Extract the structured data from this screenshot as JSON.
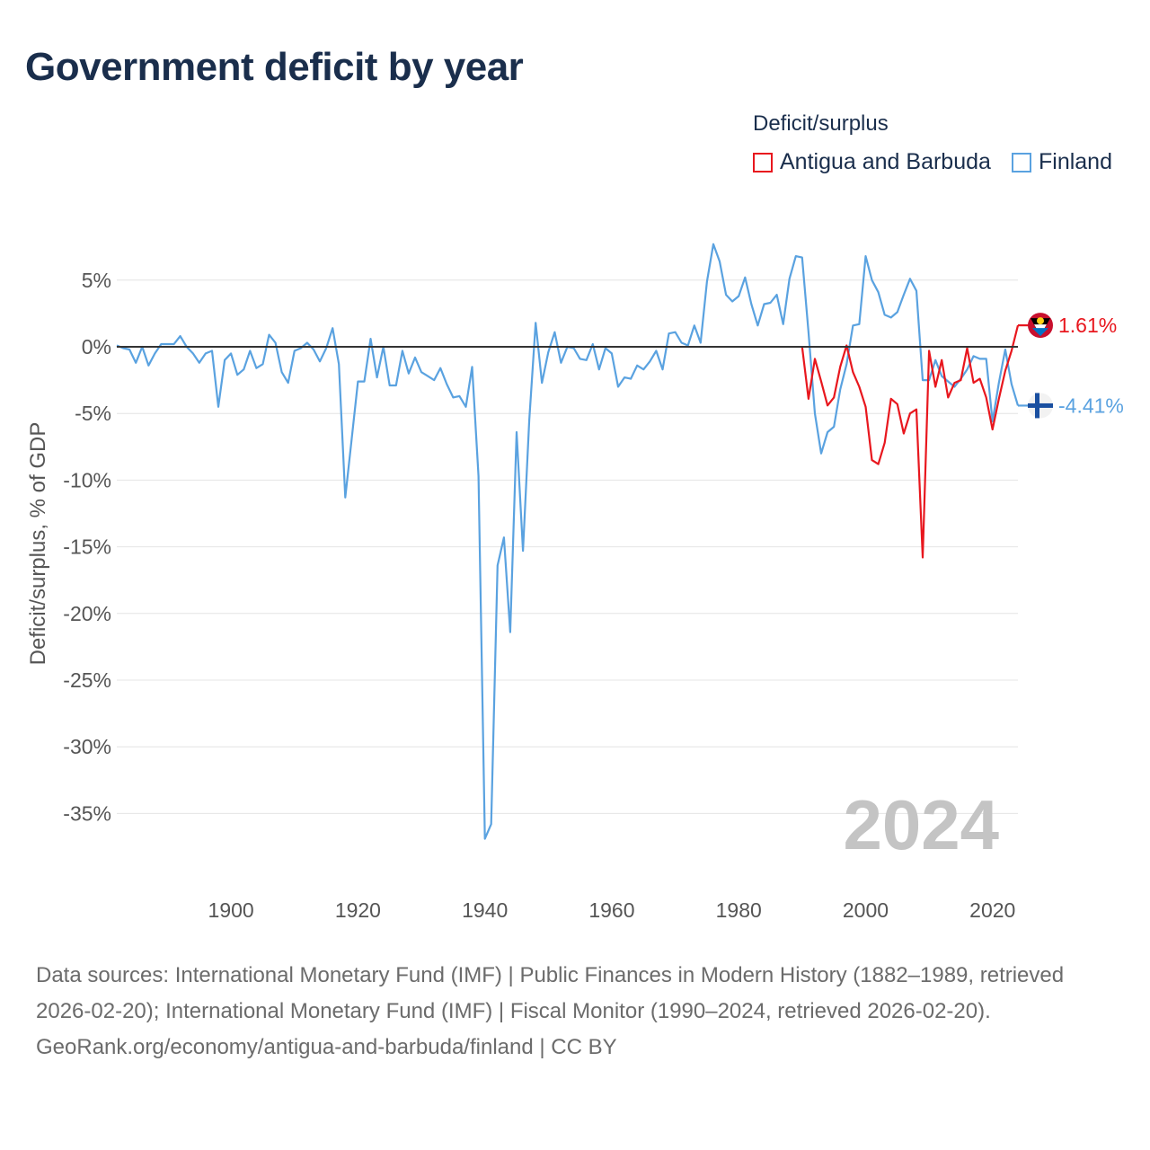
{
  "title": "Government deficit by year",
  "legend": {
    "title": "Deficit/surplus",
    "items": [
      {
        "label": "Antigua and Barbuda",
        "color": "#e8171e"
      },
      {
        "label": "Finland",
        "color": "#5aa2e0"
      }
    ]
  },
  "year_label": "2024",
  "footer": {
    "sources": "Data sources: International Monetary Fund (IMF) | Public Finances in Modern History (1882–1989, retrieved 2026-02-20); International Monetary Fund (IMF) | Fiscal Monitor (1990–2024, retrieved 2026-02-20).",
    "credit": "GeoRank.org/economy/antigua-and-barbuda/finland | CC BY"
  },
  "chart_data": {
    "type": "line",
    "title": "Government deficit by year",
    "xlabel": "",
    "ylabel": "Deficit/surplus, % of GDP",
    "xlim": [
      1882,
      2024
    ],
    "ylim": [
      -37,
      8
    ],
    "x_ticks": [
      1900,
      1920,
      1940,
      1960,
      1980,
      2000,
      2020
    ],
    "y_ticks": [
      5,
      0,
      -5,
      -10,
      -15,
      -20,
      -25,
      -30,
      -35
    ],
    "y_tick_labels": [
      "5%",
      "0%",
      "-5%",
      "-10%",
      "-15%",
      "-20%",
      "-25%",
      "-30%",
      "-35%"
    ],
    "grid": true,
    "series": [
      {
        "name": "Finland",
        "color": "#5aa2e0",
        "end_label": "-4.41%",
        "x": [
          1882,
          1883,
          1884,
          1885,
          1886,
          1887,
          1888,
          1889,
          1890,
          1891,
          1892,
          1893,
          1894,
          1895,
          1896,
          1897,
          1898,
          1899,
          1900,
          1901,
          1902,
          1903,
          1904,
          1905,
          1906,
          1907,
          1908,
          1909,
          1910,
          1911,
          1912,
          1913,
          1914,
          1915,
          1916,
          1917,
          1918,
          1919,
          1920,
          1921,
          1922,
          1923,
          1924,
          1925,
          1926,
          1927,
          1928,
          1929,
          1930,
          1931,
          1932,
          1933,
          1934,
          1935,
          1936,
          1937,
          1938,
          1939,
          1940,
          1941,
          1942,
          1943,
          1944,
          1945,
          1946,
          1947,
          1948,
          1949,
          1950,
          1951,
          1952,
          1953,
          1954,
          1955,
          1956,
          1957,
          1958,
          1959,
          1960,
          1961,
          1962,
          1963,
          1964,
          1965,
          1966,
          1967,
          1968,
          1969,
          1970,
          1971,
          1972,
          1973,
          1974,
          1975,
          1976,
          1977,
          1978,
          1979,
          1980,
          1981,
          1982,
          1983,
          1984,
          1985,
          1986,
          1987,
          1988,
          1989,
          1990,
          1991,
          1992,
          1993,
          1994,
          1995,
          1996,
          1997,
          1998,
          1999,
          2000,
          2001,
          2002,
          2003,
          2004,
          2005,
          2006,
          2007,
          2008,
          2009,
          2010,
          2011,
          2012,
          2013,
          2014,
          2015,
          2016,
          2017,
          2018,
          2019,
          2020,
          2021,
          2022,
          2023,
          2024
        ],
        "values": [
          0.1,
          -0.1,
          -0.2,
          -1.2,
          0.0,
          -1.4,
          -0.5,
          0.2,
          0.2,
          0.2,
          0.8,
          0.0,
          -0.5,
          -1.2,
          -0.5,
          -0.3,
          -4.5,
          -1.0,
          -0.5,
          -2.1,
          -1.7,
          -0.3,
          -1.6,
          -1.3,
          0.9,
          0.3,
          -1.9,
          -2.7,
          -0.3,
          -0.1,
          0.3,
          -0.2,
          -1.1,
          -0.1,
          1.4,
          -1.3,
          -11.3,
          -7.0,
          -2.6,
          -2.6,
          0.6,
          -2.3,
          0.0,
          -2.9,
          -2.9,
          -0.3,
          -2.0,
          -0.8,
          -1.9,
          -2.2,
          -2.5,
          -1.6,
          -2.8,
          -3.8,
          -3.7,
          -4.5,
          -1.5,
          -9.7,
          -36.9,
          -35.8,
          -16.4,
          -14.3,
          -21.4,
          -6.4,
          -15.3,
          -5.5,
          1.8,
          -2.7,
          -0.4,
          1.1,
          -1.2,
          0.0,
          -0.1,
          -0.9,
          -1.0,
          0.2,
          -1.7,
          -0.1,
          -0.5,
          -3.0,
          -2.3,
          -2.4,
          -1.4,
          -1.7,
          -1.1,
          -0.3,
          -1.7,
          1.0,
          1.1,
          0.3,
          0.1,
          1.6,
          0.3,
          4.9,
          7.7,
          6.4,
          3.9,
          3.4,
          3.8,
          5.2,
          3.2,
          1.6,
          3.2,
          3.3,
          3.9,
          1.7,
          5.1,
          6.8,
          6.7,
          1.1,
          -5.0,
          -8.0,
          -6.4,
          -6.0,
          -3.2,
          -1.3,
          1.6,
          1.7,
          6.8,
          5.0,
          4.1,
          2.4,
          2.2,
          2.6,
          3.9,
          5.1,
          4.2,
          -2.5,
          -2.5,
          -1.0,
          -2.2,
          -2.6,
          -3.0,
          -2.4,
          -1.7,
          -0.7,
          -0.9,
          -0.9,
          -5.6,
          -2.7,
          -0.2,
          -2.8,
          -4.41
        ]
      },
      {
        "name": "Antigua and Barbuda",
        "color": "#e8171e",
        "end_label": "1.61%",
        "x": [
          1990,
          1991,
          1992,
          1993,
          1994,
          1995,
          1996,
          1997,
          1998,
          1999,
          2000,
          2001,
          2002,
          2003,
          2004,
          2005,
          2006,
          2007,
          2008,
          2009,
          2010,
          2011,
          2012,
          2013,
          2014,
          2015,
          2016,
          2017,
          2018,
          2019,
          2020,
          2021,
          2022,
          2023,
          2024
        ],
        "values": [
          0.0,
          -3.9,
          -0.9,
          -2.6,
          -4.4,
          -3.8,
          -1.5,
          0.1,
          -1.9,
          -3.0,
          -4.5,
          -8.5,
          -8.8,
          -7.2,
          -3.9,
          -4.3,
          -6.5,
          -5.0,
          -4.7,
          -15.8,
          -0.3,
          -3.0,
          -1.0,
          -3.8,
          -2.7,
          -2.5,
          -0.1,
          -2.7,
          -2.4,
          -3.8,
          -6.2,
          -3.9,
          -1.8,
          -0.3,
          1.61
        ]
      }
    ]
  }
}
